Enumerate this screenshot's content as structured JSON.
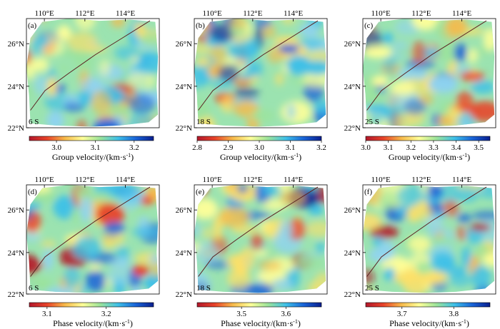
{
  "lon_ticks": [
    "110°E",
    "112°E",
    "114°E"
  ],
  "lat_ticks": [
    "26°N",
    "24°N",
    "22°N"
  ],
  "panels": [
    {
      "id": "a",
      "label": "(a)",
      "period": "6 S",
      "type": "group",
      "seed": 3,
      "cb_ticks": [
        "3.0",
        "3.1",
        "3.2"
      ],
      "cb_min": 2.93,
      "cb_max": 3.25,
      "cb_values": [
        3.0,
        3.1,
        3.2
      ],
      "cb_title": "Group velocity/(km·s",
      "cb_sup": "-1",
      "cb_close": ")"
    },
    {
      "id": "b",
      "label": "(b)",
      "period": "18 S",
      "type": "group",
      "seed": 7,
      "cb_ticks": [
        "2.8",
        "2.9",
        "3.0",
        "3.1",
        "3.2"
      ],
      "cb_min": 2.8,
      "cb_max": 3.2,
      "cb_values": [
        2.8,
        2.9,
        3.0,
        3.1,
        3.2
      ],
      "cb_title": "Group velocity/(km·s",
      "cb_sup": "-1",
      "cb_close": ")"
    },
    {
      "id": "c",
      "label": "(c)",
      "period": "25 S",
      "type": "group",
      "seed": 11,
      "cb_ticks": [
        "3.0",
        "3.1",
        "3.2",
        "3.3",
        "3.4",
        "3.5"
      ],
      "cb_min": 3.0,
      "cb_max": 3.55,
      "cb_values": [
        3.0,
        3.1,
        3.2,
        3.3,
        3.4,
        3.5
      ],
      "cb_title": "Group velocity/(km·s",
      "cb_sup": "-1",
      "cb_close": ")"
    },
    {
      "id": "d",
      "label": "(d)",
      "period": "6 S",
      "type": "phase",
      "seed": 13,
      "cb_ticks": [
        "3.1",
        "3.2"
      ],
      "cb_min": 3.07,
      "cb_max": 3.28,
      "cb_values": [
        3.1,
        3.2
      ],
      "cb_title": "Phase velocity/(km·s",
      "cb_sup": "-1",
      "cb_close": ")"
    },
    {
      "id": "e",
      "label": "(e)",
      "period": "18 S",
      "type": "phase",
      "seed": 17,
      "cb_ticks": [
        "3.5",
        "3.6"
      ],
      "cb_min": 3.4,
      "cb_max": 3.68,
      "cb_values": [
        3.5,
        3.6
      ],
      "cb_title": "Phase velocity/(km·s",
      "cb_sup": "-1",
      "cb_close": ")"
    },
    {
      "id": "f",
      "label": "(f)",
      "period": "25 S",
      "type": "phase",
      "seed": 19,
      "cb_ticks": [
        "3.7",
        "3.8"
      ],
      "cb_min": 3.63,
      "cb_max": 3.87,
      "cb_values": [
        3.7,
        3.8
      ],
      "cb_title": "Phase velocity/(km·s",
      "cb_sup": "-1",
      "cb_close": ")"
    }
  ],
  "colors": {
    "fault_line": "#5a2020",
    "cmap": [
      "#b2182b",
      "#e8432a",
      "#f7b94a",
      "#ffff99",
      "#9be39b",
      "#3ec0e8",
      "#1a64d8",
      "#0a1f8f"
    ]
  }
}
